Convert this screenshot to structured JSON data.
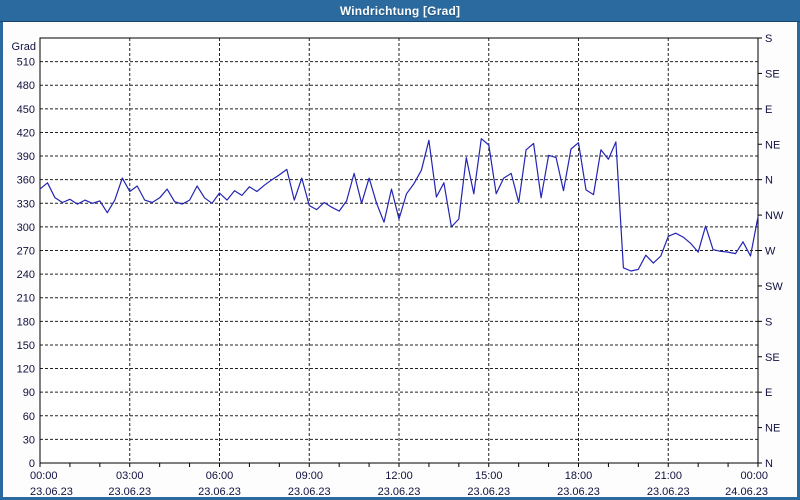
{
  "window": {
    "title": "Windrichtung [Grad]",
    "colors": {
      "titlebar": "#2a6a9f",
      "border": "#2a6a9f",
      "background": "#fdfdfd",
      "plot_bg": "#ffffff",
      "line": "#2424b4",
      "grid": "#222222",
      "axis": "#000000",
      "text": "#101040",
      "title_text": "#ffffff"
    }
  },
  "chart_data": {
    "type": "line",
    "title": "Windrichtung [Grad]",
    "ylabel": "Grad",
    "xlabel": "",
    "xlim": [
      0,
      24
    ],
    "ylim": [
      0,
      540
    ],
    "grid": "dashed",
    "legend": "none",
    "x_unit": "hours",
    "x_ticks": [
      {
        "h": 0,
        "time": "00:00",
        "date": "23.06.23"
      },
      {
        "h": 3,
        "time": "03:00",
        "date": "23.06.23"
      },
      {
        "h": 6,
        "time": "06:00",
        "date": "23.06.23"
      },
      {
        "h": 9,
        "time": "09:00",
        "date": "23.06.23"
      },
      {
        "h": 12,
        "time": "12:00",
        "date": "23.06.23"
      },
      {
        "h": 15,
        "time": "15:00",
        "date": "23.06.23"
      },
      {
        "h": 18,
        "time": "18:00",
        "date": "23.06.23"
      },
      {
        "h": 21,
        "time": "21:00",
        "date": "23.06.23"
      },
      {
        "h": 24,
        "time": "00:00",
        "date": "24.06.23"
      }
    ],
    "x_minor_tick_step_hours": 1,
    "y_ticks_left": [
      0,
      30,
      60,
      90,
      120,
      150,
      180,
      210,
      240,
      270,
      300,
      330,
      360,
      390,
      420,
      450,
      480,
      510
    ],
    "y_ticks_right": [
      {
        "value": 0,
        "label": "N"
      },
      {
        "value": 45,
        "label": "NE"
      },
      {
        "value": 90,
        "label": "E"
      },
      {
        "value": 135,
        "label": "SE"
      },
      {
        "value": 180,
        "label": "S"
      },
      {
        "value": 225,
        "label": "SW"
      },
      {
        "value": 270,
        "label": "W"
      },
      {
        "value": 315,
        "label": "NW"
      },
      {
        "value": 360,
        "label": "N"
      },
      {
        "value": 405,
        "label": "NE"
      },
      {
        "value": 450,
        "label": "E"
      },
      {
        "value": 495,
        "label": "SE"
      },
      {
        "value": 540,
        "label": "S"
      }
    ],
    "series": [
      {
        "name": "Windrichtung",
        "x": [
          0,
          0.25,
          0.5,
          0.75,
          1,
          1.25,
          1.5,
          1.75,
          2,
          2.25,
          2.5,
          2.75,
          3,
          3.25,
          3.5,
          3.75,
          4,
          4.25,
          4.5,
          4.75,
          5,
          5.25,
          5.5,
          5.75,
          6,
          6.25,
          6.5,
          6.75,
          7,
          7.25,
          7.5,
          7.75,
          8,
          8.25,
          8.5,
          8.75,
          9,
          9.25,
          9.5,
          9.75,
          10,
          10.25,
          10.5,
          10.75,
          11,
          11.25,
          11.5,
          11.75,
          12,
          12.25,
          12.5,
          12.75,
          13,
          13.25,
          13.5,
          13.75,
          14,
          14.25,
          14.5,
          14.75,
          15,
          15.25,
          15.5,
          15.75,
          16,
          16.25,
          16.5,
          16.75,
          17,
          17.25,
          17.5,
          17.75,
          18,
          18.25,
          18.5,
          18.75,
          19,
          19.25,
          19.5,
          19.75,
          20,
          20.25,
          20.5,
          20.75,
          21,
          21.25,
          21.5,
          21.75,
          22,
          22.25,
          22.5,
          22.75,
          23,
          23.25,
          23.5,
          23.75,
          24
        ],
        "values": [
          348,
          356,
          337,
          331,
          335,
          329,
          334,
          330,
          333,
          318,
          334,
          362,
          345,
          352,
          334,
          331,
          337,
          348,
          332,
          329,
          334,
          352,
          337,
          330,
          343,
          334,
          346,
          340,
          351,
          345,
          353,
          360,
          366,
          373,
          334,
          362,
          327,
          322,
          331,
          325,
          320,
          333,
          368,
          330,
          362,
          330,
          306,
          348,
          310,
          342,
          355,
          372,
          410,
          338,
          356,
          300,
          310,
          388,
          342,
          412,
          404,
          342,
          362,
          368,
          331,
          398,
          406,
          337,
          391,
          388,
          346,
          399,
          407,
          347,
          341,
          398,
          386,
          408,
          248,
          244,
          246,
          264,
          254,
          263,
          288,
          292,
          287,
          279,
          268,
          301,
          271,
          269,
          268,
          266,
          281,
          263,
          313
        ]
      }
    ]
  }
}
